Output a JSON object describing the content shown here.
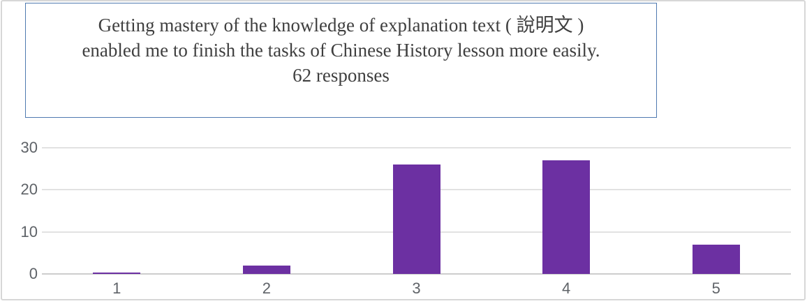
{
  "title": {
    "line1": "Getting mastery of the knowledge of explanation text ( 說明文 )",
    "line2": "enabled me to finish the tasks of Chinese History lesson more easily.",
    "responses": "62 responses"
  },
  "chart_data": {
    "type": "bar",
    "title": "Getting mastery of the knowledge of explanation text ( 說明文 ) enabled me to finish the tasks of Chinese History lesson more easily.",
    "subtitle": "62 responses",
    "categories": [
      "1",
      "2",
      "3",
      "4",
      "5"
    ],
    "values": [
      0,
      2,
      26,
      27,
      7
    ],
    "xlabel": "",
    "ylabel": "",
    "ylim": [
      0,
      30
    ],
    "yticks": [
      0,
      10,
      20,
      30
    ],
    "grid": true,
    "legend": "none",
    "colors": {
      "bar": "#6c30a2",
      "axis_label": "#5f6368",
      "gridline": "#e2e2e2",
      "baseline": "#cdcdcd",
      "title_text": "#3f3f3f",
      "title_box_border": "#4f7ab0",
      "card_border": "#d7d7d7"
    }
  }
}
